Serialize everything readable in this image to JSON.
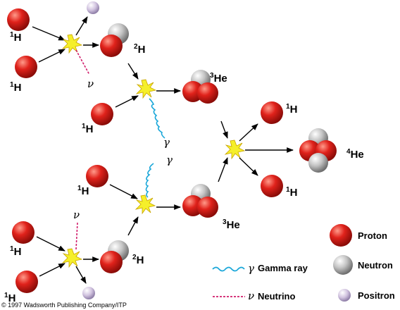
{
  "labels": {
    "hydrogen1": "H",
    "hydrogen1_mass": "1",
    "deuterium": "H",
    "deuterium_mass": "2",
    "helium3": "He",
    "helium3_mass": "3",
    "helium4": "He",
    "helium4_mass": "4",
    "gamma_symbol": "γ",
    "neutrino_symbol": "ν"
  },
  "legend": {
    "proton": "Proton",
    "neutron": "Neutron",
    "positron": "Positron",
    "gamma_ray": "Gamma ray",
    "neutrino": "Neutrino",
    "gamma_symbol": "γ",
    "neutrino_symbol": "ν"
  },
  "colors": {
    "proton": "#e0221b",
    "neutron": "#b8b8b8",
    "positron": "#c8b8d8",
    "gamma_ray": "#1aa7d9",
    "neutrino": "#d11c6a",
    "flash": "#f5ef2a"
  },
  "copyright": "© 1997 Wadsworth Publishing Company/ITP"
}
